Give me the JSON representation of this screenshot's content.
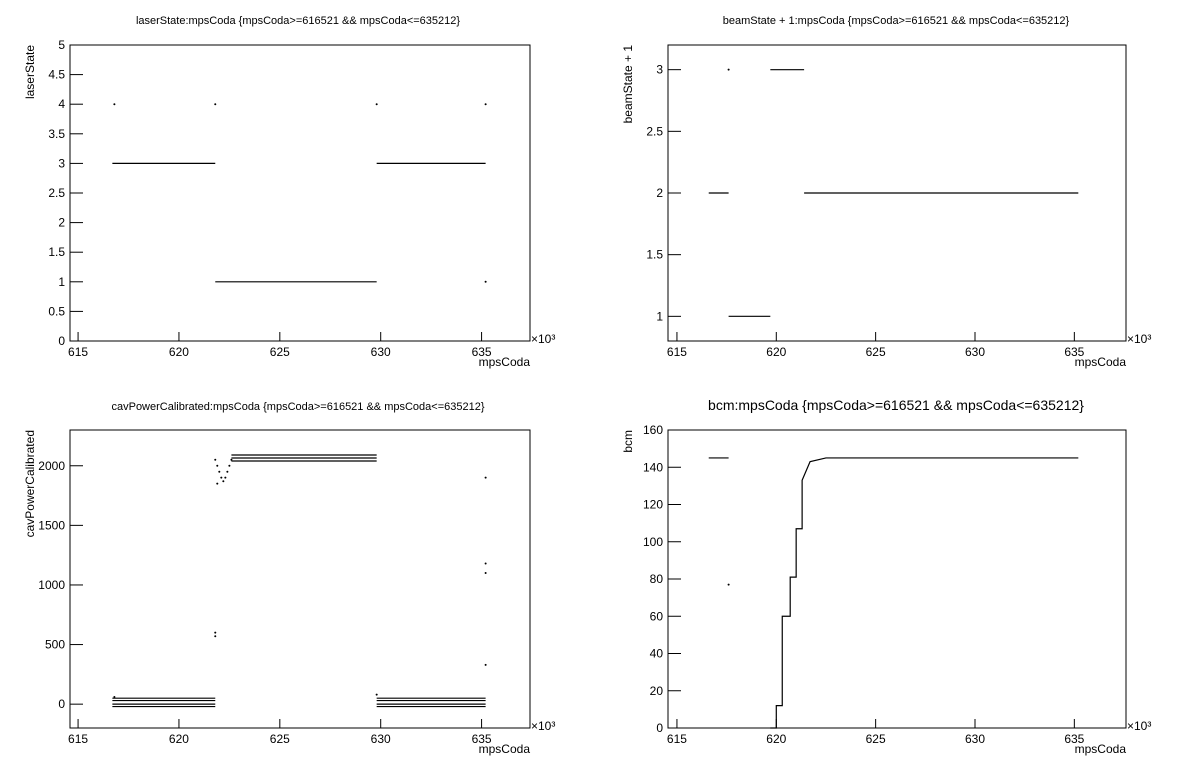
{
  "chart_data": [
    {
      "type": "scatter",
      "title": "laserState:mpsCoda {mpsCoda>=616521 && mpsCoda<=635212}",
      "xlabel": "mpsCoda",
      "ylabel": "laserState",
      "x_exponent": "×10³",
      "xlim": [
        614.6,
        637.4
      ],
      "xticks": [
        615,
        620,
        625,
        630,
        635
      ],
      "ylim": [
        0,
        5
      ],
      "yticks": [
        0,
        0.5,
        1,
        1.5,
        2,
        2.5,
        3,
        3.5,
        4,
        4.5,
        5
      ],
      "series": [
        {
          "mode": "line",
          "color": "#000000",
          "x": [
            616.7,
            621.8,
            null,
            621.8,
            629.8,
            null,
            629.8,
            635.2
          ],
          "values": [
            3,
            3,
            null,
            1,
            1,
            null,
            3,
            3
          ]
        },
        {
          "mode": "points",
          "color": "#000000",
          "x": [
            616.8,
            621.8,
            629.8,
            635.2,
            635.2
          ],
          "values": [
            4,
            4,
            4,
            4,
            1
          ]
        }
      ]
    },
    {
      "type": "scatter",
      "title": "beamState + 1:mpsCoda {mpsCoda>=616521 && mpsCoda<=635212}",
      "xlabel": "mpsCoda",
      "ylabel": "beamState + 1",
      "x_exponent": "×10³",
      "xlim": [
        614.55,
        637.6
      ],
      "xticks": [
        615,
        620,
        625,
        630,
        635
      ],
      "ylim": [
        0.8,
        3.2
      ],
      "yticks": [
        1,
        1.5,
        2,
        2.5,
        3
      ],
      "series": [
        {
          "mode": "line",
          "color": "#000000",
          "x": [
            616.6,
            617.6,
            null,
            617.6,
            619.7,
            null,
            619.7,
            621.4,
            null,
            621.4,
            635.2
          ],
          "values": [
            2,
            2,
            null,
            1,
            1,
            null,
            3,
            3,
            null,
            2,
            2
          ]
        },
        {
          "mode": "points",
          "color": "#000000",
          "x": [
            617.6
          ],
          "values": [
            3
          ]
        }
      ]
    },
    {
      "type": "scatter",
      "title": "cavPowerCalibrated:mpsCoda {mpsCoda>=616521 && mpsCoda<=635212}",
      "xlabel": "mpsCoda",
      "ylabel": "cavPowerCalibrated",
      "x_exponent": "×10³",
      "xlim": [
        614.6,
        637.4
      ],
      "xticks": [
        615,
        620,
        625,
        630,
        635
      ],
      "ylim": [
        -200,
        2300
      ],
      "yticks": [
        0,
        500,
        1000,
        1500,
        2000
      ],
      "series": [
        {
          "mode": "line",
          "color": "#000000",
          "x": [
            616.7,
            621.8,
            null,
            629.8,
            635.2
          ],
          "values": [
            50,
            50,
            null,
            50,
            50
          ]
        },
        {
          "mode": "line",
          "color": "#000000",
          "x": [
            616.7,
            621.8,
            null,
            629.8,
            635.2
          ],
          "values": [
            30,
            30,
            null,
            30,
            30
          ]
        },
        {
          "mode": "line",
          "color": "#000000",
          "x": [
            616.7,
            621.8,
            null,
            629.8,
            635.2
          ],
          "values": [
            0,
            0,
            null,
            0,
            0
          ]
        },
        {
          "mode": "line",
          "color": "#000000",
          "x": [
            616.7,
            621.8,
            null,
            629.8,
            635.2
          ],
          "values": [
            -20,
            -20,
            null,
            -20,
            -20
          ]
        },
        {
          "mode": "line",
          "color": "#000000",
          "x": [
            622.6,
            629.8
          ],
          "values": [
            2090,
            2090
          ]
        },
        {
          "mode": "line",
          "color": "#000000",
          "x": [
            622.6,
            629.8
          ],
          "values": [
            2065,
            2065
          ]
        },
        {
          "mode": "line",
          "color": "#000000",
          "x": [
            622.6,
            629.8
          ],
          "values": [
            2040,
            2040
          ]
        },
        {
          "mode": "points",
          "color": "#000000",
          "x": [
            621.8,
            621.9,
            622.0,
            622.1,
            622.2,
            622.3,
            622.4,
            622.5,
            622.6,
            621.9,
            621.8,
            621.8,
            635.2,
            635.2,
            635.2,
            635.2,
            616.8,
            629.8
          ],
          "values": [
            2050,
            2000,
            1950,
            1900,
            1870,
            1900,
            1950,
            2000,
            2050,
            1850,
            600,
            570,
            1900,
            1180,
            1100,
            330,
            60,
            80
          ]
        }
      ]
    },
    {
      "type": "scatter",
      "title": "bcm:mpsCoda {mpsCoda>=616521 && mpsCoda<=635212}",
      "xlabel": "mpsCoda",
      "ylabel": "bcm",
      "x_exponent": "×10³",
      "xlim": [
        614.55,
        637.6
      ],
      "xticks": [
        615,
        620,
        625,
        630,
        635
      ],
      "ylim": [
        0,
        160
      ],
      "yticks": [
        0,
        20,
        40,
        60,
        80,
        100,
        120,
        140,
        160
      ],
      "series": [
        {
          "mode": "line",
          "color": "#000000",
          "x": [
            616.6,
            617.6,
            null,
            619.7,
            620.0,
            620.0,
            620.3,
            620.3,
            620.7,
            620.7,
            621.0,
            621.0,
            621.3,
            621.3,
            621.7,
            622.5,
            635.2
          ],
          "values": [
            145,
            145,
            null,
            0,
            0,
            12,
            12,
            60,
            60,
            81,
            81,
            107,
            107,
            133,
            143,
            145,
            145
          ]
        },
        {
          "mode": "points",
          "color": "#000000",
          "x": [
            617.6
          ],
          "values": [
            77
          ]
        }
      ]
    }
  ]
}
